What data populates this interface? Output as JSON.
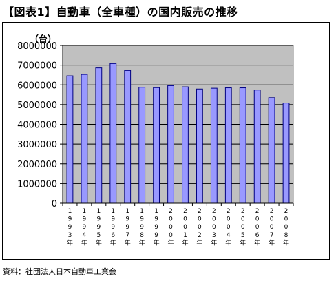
{
  "title": "【図表1】自動車（全車種）の国内販売の推移",
  "unit_label": "（台）",
  "source": "資料：社団法人日本自動車工業会",
  "chart_data": {
    "type": "bar",
    "title": "【図表1】自動車（全車種）の国内販売の推移",
    "ylabel": "（台）",
    "xlabel": "",
    "categories": [
      "1993年",
      "1994年",
      "1995年",
      "1996年",
      "1997年",
      "1998年",
      "1999年",
      "2000年",
      "2001年",
      "2002年",
      "2003年",
      "2004年",
      "2005年",
      "2006年",
      "2007年",
      "2008年"
    ],
    "values": [
      6460000,
      6530000,
      6860000,
      7080000,
      6730000,
      5880000,
      5860000,
      5960000,
      5900000,
      5790000,
      5830000,
      5850000,
      5850000,
      5740000,
      5350000,
      5080000
    ],
    "ylim": [
      0,
      8000000
    ],
    "yticks": [
      0,
      1000000,
      2000000,
      3000000,
      4000000,
      5000000,
      6000000,
      7000000,
      8000000
    ],
    "grid": true,
    "colors": {
      "bar": "#9999ff",
      "bar_stroke": "#000080",
      "plot_bg": "#c0c0c0"
    }
  }
}
